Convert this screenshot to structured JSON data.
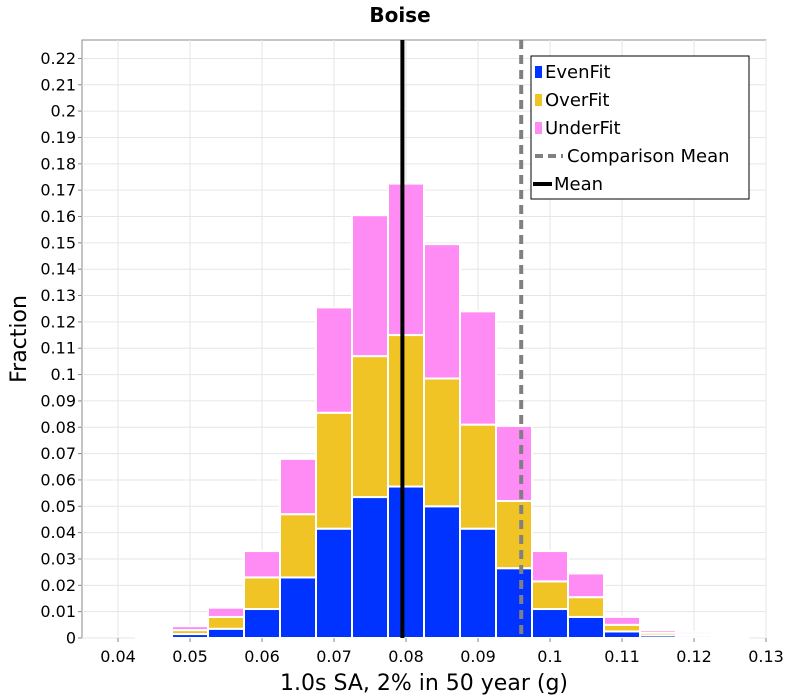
{
  "chart_data": {
    "type": "bar",
    "title": "Boise",
    "xlabel": "1.0s SA, 2% in 50 year (g)",
    "ylabel": "Fraction",
    "xlim": [
      0.035,
      0.13
    ],
    "ylim": [
      0,
      0.227
    ],
    "bin_width": 0.005,
    "x_ticks": [
      "0.04",
      "0.05",
      "0.06",
      "0.07",
      "0.08",
      "0.09",
      "0.1",
      "0.11",
      "0.12",
      "0.13"
    ],
    "y_ticks": [
      "0",
      "0.01",
      "0.02",
      "0.03",
      "0.04",
      "0.05",
      "0.06",
      "0.07",
      "0.08",
      "0.09",
      "0.1",
      "0.11",
      "0.12",
      "0.13",
      "0.14",
      "0.15",
      "0.16",
      "0.17",
      "0.18",
      "0.19",
      "0.2",
      "0.21",
      "0.22"
    ],
    "x": [
      0.04,
      0.045,
      0.05,
      0.055,
      0.06,
      0.065,
      0.07,
      0.075,
      0.08,
      0.085,
      0.09,
      0.095,
      0.1,
      0.105,
      0.11,
      0.115,
      0.12,
      0.125
    ],
    "series": [
      {
        "name": "EvenFit",
        "color": "#0033ff",
        "values": [
          0,
          0.0004,
          0.0015,
          0.0035,
          0.011,
          0.023,
          0.0415,
          0.0535,
          0.0575,
          0.05,
          0.0415,
          0.0265,
          0.011,
          0.008,
          0.0025,
          0.001,
          0.0008,
          0.0003
        ]
      },
      {
        "name": "OverFit",
        "color": "#f0c424",
        "values": [
          0,
          0,
          0.0015,
          0.0045,
          0.012,
          0.024,
          0.044,
          0.0535,
          0.0575,
          0.0485,
          0.0395,
          0.0255,
          0.0105,
          0.0075,
          0.0025,
          0.001,
          0.0007,
          0.0003
        ]
      },
      {
        "name": "UnderFit",
        "color": "#ff8cf4",
        "values": [
          0,
          0.0004,
          0.0015,
          0.0035,
          0.01,
          0.021,
          0.04,
          0.0535,
          0.0575,
          0.051,
          0.043,
          0.0285,
          0.0115,
          0.009,
          0.003,
          0.001,
          0.0008,
          0.0004
        ]
      }
    ],
    "lines": [
      {
        "name": "Comparison Mean",
        "x": 0.096,
        "color": "#808080",
        "style": "dashed"
      },
      {
        "name": "Mean",
        "x": 0.0795,
        "color": "#000000",
        "style": "solid"
      }
    ],
    "legend_position": "top-right",
    "grid": true
  }
}
